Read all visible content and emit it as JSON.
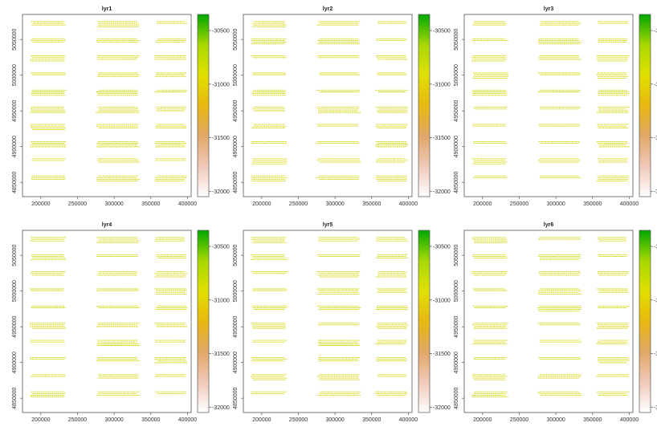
{
  "chart_data": {
    "type": "heatmap",
    "panels": [
      {
        "title": "lyr1"
      },
      {
        "title": "lyr2"
      },
      {
        "title": "lyr3"
      },
      {
        "title": "lyr4"
      },
      {
        "title": "lyr5"
      },
      {
        "title": "lyr6"
      }
    ],
    "x_range": [
      175000,
      405000
    ],
    "y_range": [
      4830000,
      5085000
    ],
    "x_ticks": [
      200000,
      250000,
      300000,
      350000,
      400000
    ],
    "y_ticks": [
      4850000,
      4900000,
      4950000,
      5000000,
      5050000
    ],
    "x_tick_labels": [
      "200000",
      "250000",
      "300000",
      "350000",
      "400000"
    ],
    "y_tick_labels": [
      "4850000",
      "4900000",
      "4950000",
      "5000000",
      "5050000"
    ],
    "colorbar": {
      "range": [
        -32050,
        -30350
      ],
      "ticks": [
        -32000,
        -31500,
        -31000,
        -30500
      ],
      "tick_labels": [
        "-32000",
        "-31500",
        "-31000",
        "-30500"
      ],
      "colors": [
        "#ffffff",
        "#f0c8b8",
        "#e0a868",
        "#e8b810",
        "#e0e000",
        "#a8d800",
        "#00a800"
      ]
    },
    "data_extent": {
      "x_groups": [
        [
          185000,
          235000
        ],
        [
          275000,
          335000
        ],
        [
          355000,
          400000
        ]
      ],
      "y_range": [
        4840000,
        5075000
      ],
      "band_spacing": 24000,
      "dominant_value": -30950,
      "dominant_color": "#d4d400"
    }
  }
}
